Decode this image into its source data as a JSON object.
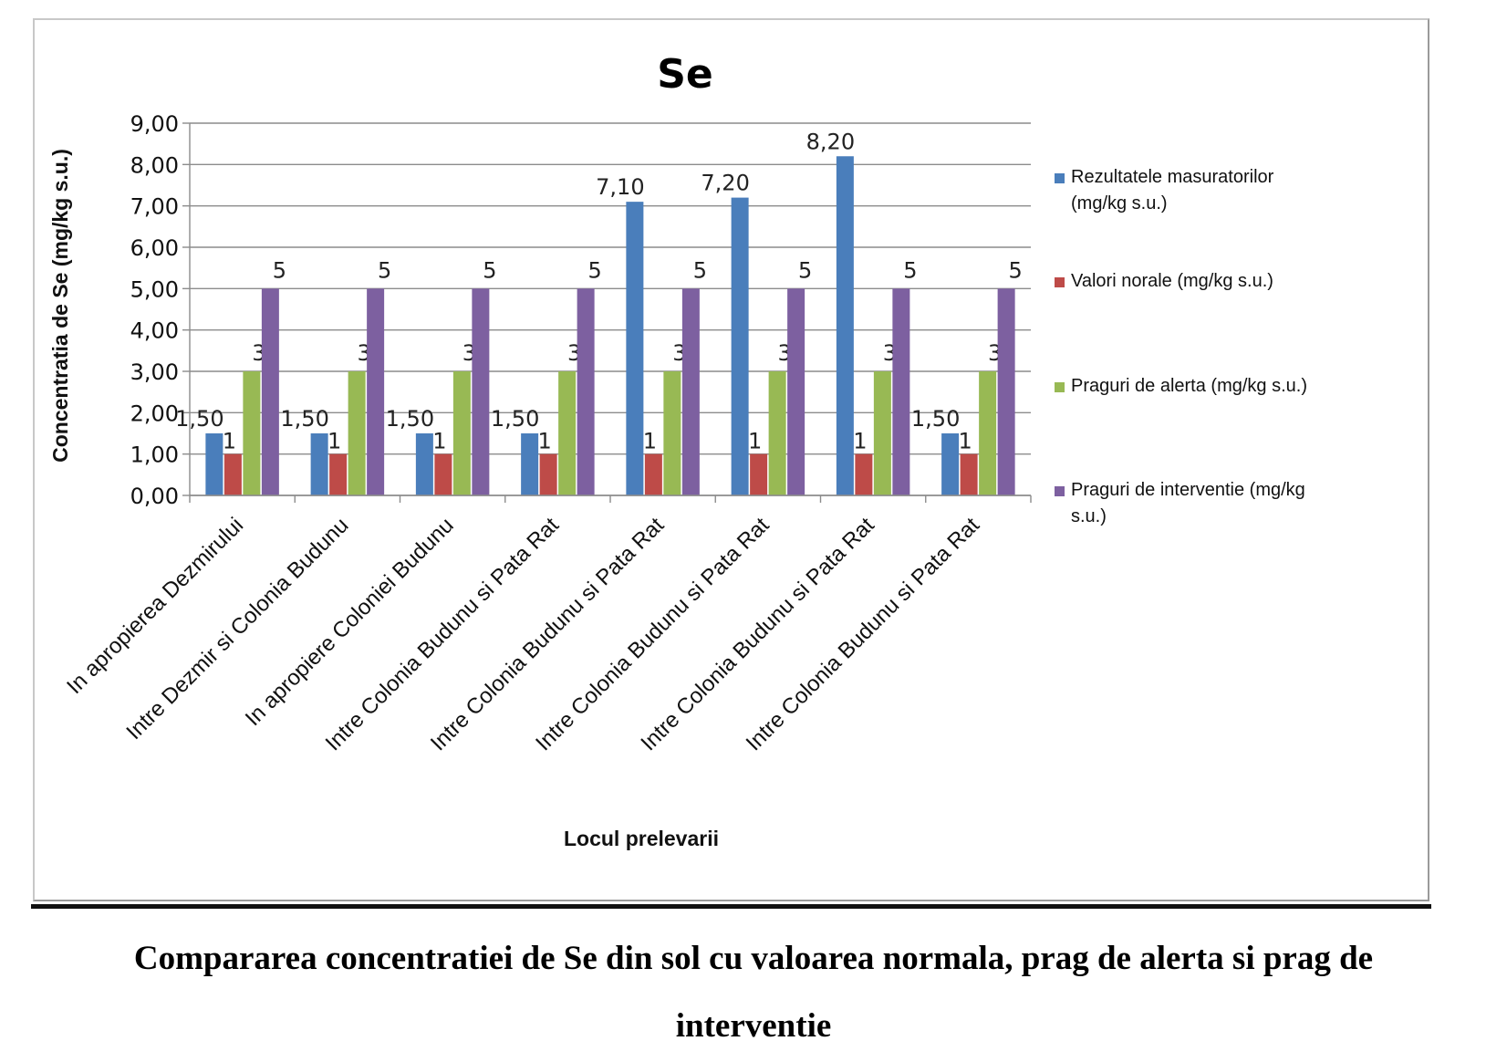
{
  "chart_data": {
    "type": "bar",
    "title": "Se",
    "ylabel": "Concentratia de Se (mg/kg s.u.)",
    "xlabel": "Locul prelevarii",
    "ylim": [
      0,
      9
    ],
    "y_ticks": [
      "0,00",
      "1,00",
      "2,00",
      "3,00",
      "4,00",
      "5,00",
      "6,00",
      "7,00",
      "8,00",
      "9,00"
    ],
    "grid": true,
    "legend_position": "right",
    "categories": [
      "In apropierea Dezmirului",
      "Intre Dezmir si Colonia Budunu",
      "In apropiere Coloniei Budunu",
      "Intre Colonia Budunu si Pata Rat",
      "Intre Colonia Budunu si Pata Rat",
      "Intre Colonia Budunu si Pata Rat",
      "Intre Colonia Budunu si Pata Rat",
      "Intre Colonia Budunu si Pata Rat"
    ],
    "series": [
      {
        "name": "Rezultatele masuratorilor (mg/kg s.u.)",
        "color": "#4a7ebb",
        "values": [
          1.5,
          1.5,
          1.5,
          1.5,
          7.1,
          7.2,
          8.2,
          1.5
        ],
        "data_labels": [
          "1,50",
          "1,50",
          "1,50",
          "1,50",
          "7,10",
          "7,20",
          "8,20",
          "1,50"
        ]
      },
      {
        "name": "Valori norale (mg/kg s.u.)",
        "color": "#be4b48",
        "values": [
          1,
          1,
          1,
          1,
          1,
          1,
          1,
          1
        ],
        "data_labels": [
          "1",
          "1",
          "1",
          "1",
          "1",
          "1",
          "1",
          "1"
        ]
      },
      {
        "name": "Praguri de alerta (mg/kg s.u.)",
        "color": "#98b954",
        "values": [
          3,
          3,
          3,
          3,
          3,
          3,
          3,
          3
        ],
        "data_labels": [
          "3",
          "3",
          "3",
          "3",
          "3",
          "3",
          "3",
          "3"
        ]
      },
      {
        "name": "Praguri de interventie (mg/kg s.u.)",
        "color": "#7d60a0",
        "values": [
          5,
          5,
          5,
          5,
          5,
          5,
          5,
          5
        ],
        "data_labels": [
          "5",
          "5",
          "5",
          "5",
          "5",
          "5",
          "5",
          "5"
        ]
      }
    ]
  },
  "legend_lines": [
    [
      "Rezultatele masuratorilor",
      "(mg/kg s.u.)"
    ],
    [
      "Valori norale (mg/kg s.u.)"
    ],
    [
      "Praguri de alerta (mg/kg s.u.)"
    ],
    [
      "Praguri de interventie (mg/kg",
      "s.u.)"
    ]
  ],
  "caption": {
    "line1": "Compararea concentratiei de Se din sol cu valoarea normala, prag de alerta si prag de",
    "line2": "interventie"
  }
}
